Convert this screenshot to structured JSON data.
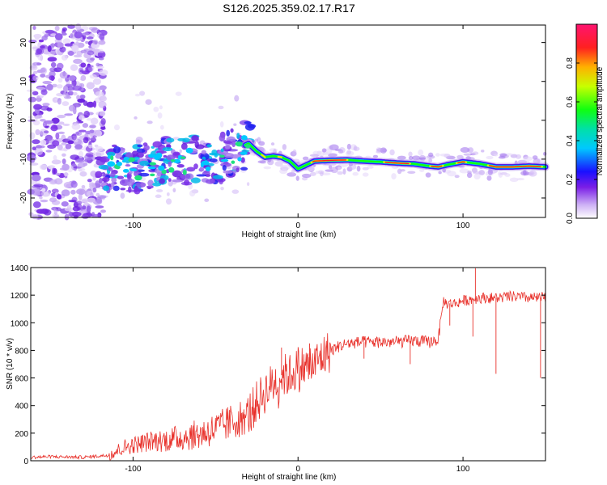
{
  "title": "S126.2025.359.02.17.R17",
  "chart_data": [
    {
      "type": "heatmap",
      "name": "spectrogram",
      "xlabel": "Height of straight line (km)",
      "ylabel": "Frequency (Hz)",
      "xlim": [
        -162,
        150
      ],
      "ylim": [
        -25,
        24.5
      ],
      "xticks": [
        -100,
        0,
        100
      ],
      "xtick_labels": [
        "-100",
        "0",
        "100"
      ],
      "yticks": [
        -20,
        -10,
        0,
        10,
        20
      ],
      "ytick_labels": [
        "-20",
        "-10",
        "0",
        "10",
        "20"
      ],
      "colorbar": {
        "label": "Normalized spectral amplitude",
        "range": [
          0,
          1
        ],
        "ticks": [
          0,
          0.2,
          0.4,
          0.6,
          0.8
        ],
        "tick_labels": [
          "0.0",
          "0.2",
          "0.4",
          "0.6",
          "0.8"
        ]
      },
      "ridge": {
        "x": [
          -115,
          -100,
          -90,
          -80,
          -70,
          -60,
          -50,
          -40,
          -35,
          -30,
          -25,
          -20,
          -15,
          -10,
          -5,
          0,
          10,
          20,
          30,
          40,
          50,
          60,
          70,
          80,
          85,
          90,
          100,
          110,
          120,
          130,
          140,
          150
        ],
        "frequency": [
          -12,
          -13,
          -11.5,
          -10.5,
          -11,
          -9.5,
          -11,
          -8,
          -7,
          -6,
          -8,
          -9.5,
          -9.2,
          -9.5,
          -10.5,
          -12.5,
          -10.5,
          -10.3,
          -10.2,
          -10.5,
          -10.7,
          -11,
          -11.2,
          -11.8,
          -12,
          -11.5,
          -10.7,
          -11.2,
          -12,
          -12,
          -11.8,
          -12
        ]
      }
    },
    {
      "type": "line",
      "name": "snr",
      "xlabel": "Height of straight line (km)",
      "ylabel": "SNR (10 * v/v)",
      "xlim": [
        -162,
        150
      ],
      "ylim": [
        0,
        1400
      ],
      "xticks": [
        -100,
        0,
        100
      ],
      "xtick_labels": [
        "-100",
        "0",
        "100"
      ],
      "yticks": [
        0,
        200,
        400,
        600,
        800,
        1000,
        1200,
        1400
      ],
      "ytick_labels": [
        "0",
        "200",
        "400",
        "600",
        "800",
        "1000",
        "1200",
        "1400"
      ],
      "series": [
        {
          "name": "SNR",
          "color": "#e8302a",
          "x": [
            -162,
            -150,
            -130,
            -115,
            -105,
            -90,
            -80,
            -70,
            -60,
            -50,
            -40,
            -30,
            -25,
            -20,
            -15,
            -10,
            -5,
            0,
            5,
            10,
            15,
            20,
            25,
            30,
            40,
            50,
            60,
            70,
            80,
            85,
            87,
            88,
            90,
            95,
            100,
            110,
            120,
            130,
            140,
            150
          ],
          "y": [
            25,
            30,
            25,
            40,
            100,
            140,
            150,
            170,
            190,
            230,
            280,
            340,
            420,
            500,
            560,
            620,
            620,
            680,
            680,
            700,
            760,
            800,
            830,
            850,
            860,
            860,
            860,
            870,
            860,
            880,
            1050,
            1160,
            1140,
            1140,
            1160,
            1180,
            1180,
            1190,
            1180,
            1180
          ]
        }
      ]
    }
  ]
}
